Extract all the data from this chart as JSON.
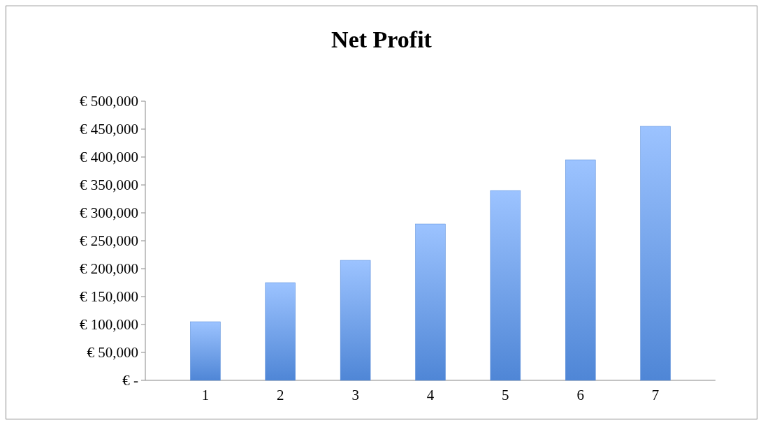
{
  "chart_data": {
    "type": "bar",
    "title": "Net Profit",
    "categories": [
      "1",
      "2",
      "3",
      "4",
      "5",
      "6",
      "7"
    ],
    "values": [
      105000,
      175000,
      215000,
      280000,
      340000,
      395000,
      455000
    ],
    "color": "#4f86d6",
    "ylim": [
      0,
      500000
    ],
    "yticks": [
      {
        "value": 0,
        "label": "€ -"
      },
      {
        "value": 50000,
        "label": "€ 50,000"
      },
      {
        "value": 100000,
        "label": "€ 100,000"
      },
      {
        "value": 150000,
        "label": "€ 150,000"
      },
      {
        "value": 200000,
        "label": "€ 200,000"
      },
      {
        "value": 250000,
        "label": "€ 250,000"
      },
      {
        "value": 300000,
        "label": "€ 300,000"
      },
      {
        "value": 350000,
        "label": "€ 350,000"
      },
      {
        "value": 400000,
        "label": "€ 400,000"
      },
      {
        "value": 450000,
        "label": "€ 450,000"
      },
      {
        "value": 500000,
        "label": "€ 500,000"
      }
    ],
    "grid": false
  }
}
